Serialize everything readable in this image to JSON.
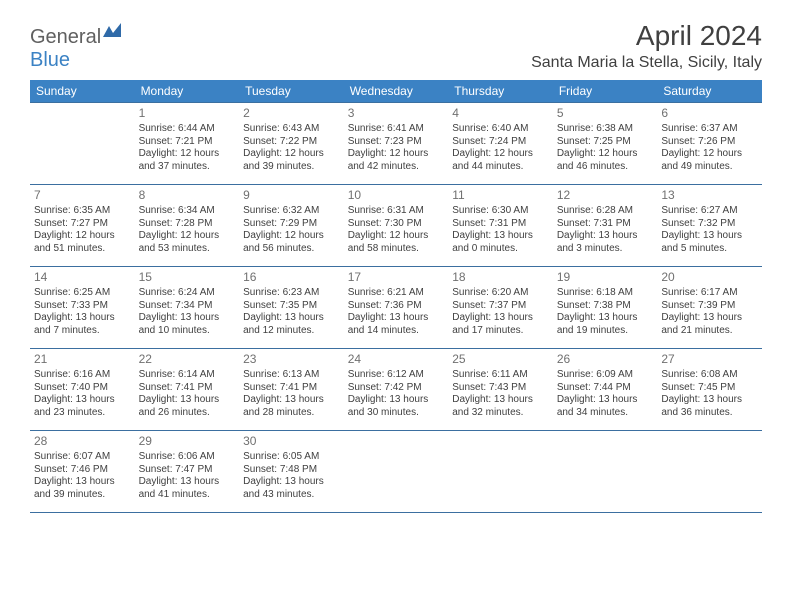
{
  "logo": {
    "text1": "General",
    "text2": "Blue"
  },
  "title": "April 2024",
  "location": "Santa Maria la Stella, Sicily, Italy",
  "colors": {
    "header_bg": "#3b82c4",
    "header_text": "#ffffff",
    "cell_border": "#3b6fa0",
    "body_text": "#404040",
    "daynum_text": "#707070",
    "logo_gray": "#606060",
    "logo_blue": "#3b82c4",
    "page_bg": "#ffffff"
  },
  "typography": {
    "title_fontsize": 28,
    "location_fontsize": 16,
    "dayheader_fontsize": 12,
    "daynum_fontsize": 12,
    "cell_fontsize": 10,
    "font_family": "Arial"
  },
  "layout": {
    "columns": 7,
    "rows": 5,
    "col_width_pct": 14.28
  },
  "day_headers": [
    "Sunday",
    "Monday",
    "Tuesday",
    "Wednesday",
    "Thursday",
    "Friday",
    "Saturday"
  ],
  "weeks": [
    [
      null,
      {
        "n": "1",
        "sunrise": "Sunrise: 6:44 AM",
        "sunset": "Sunset: 7:21 PM",
        "daylight": "Daylight: 12 hours and 37 minutes."
      },
      {
        "n": "2",
        "sunrise": "Sunrise: 6:43 AM",
        "sunset": "Sunset: 7:22 PM",
        "daylight": "Daylight: 12 hours and 39 minutes."
      },
      {
        "n": "3",
        "sunrise": "Sunrise: 6:41 AM",
        "sunset": "Sunset: 7:23 PM",
        "daylight": "Daylight: 12 hours and 42 minutes."
      },
      {
        "n": "4",
        "sunrise": "Sunrise: 6:40 AM",
        "sunset": "Sunset: 7:24 PM",
        "daylight": "Daylight: 12 hours and 44 minutes."
      },
      {
        "n": "5",
        "sunrise": "Sunrise: 6:38 AM",
        "sunset": "Sunset: 7:25 PM",
        "daylight": "Daylight: 12 hours and 46 minutes."
      },
      {
        "n": "6",
        "sunrise": "Sunrise: 6:37 AM",
        "sunset": "Sunset: 7:26 PM",
        "daylight": "Daylight: 12 hours and 49 minutes."
      }
    ],
    [
      {
        "n": "7",
        "sunrise": "Sunrise: 6:35 AM",
        "sunset": "Sunset: 7:27 PM",
        "daylight": "Daylight: 12 hours and 51 minutes."
      },
      {
        "n": "8",
        "sunrise": "Sunrise: 6:34 AM",
        "sunset": "Sunset: 7:28 PM",
        "daylight": "Daylight: 12 hours and 53 minutes."
      },
      {
        "n": "9",
        "sunrise": "Sunrise: 6:32 AM",
        "sunset": "Sunset: 7:29 PM",
        "daylight": "Daylight: 12 hours and 56 minutes."
      },
      {
        "n": "10",
        "sunrise": "Sunrise: 6:31 AM",
        "sunset": "Sunset: 7:30 PM",
        "daylight": "Daylight: 12 hours and 58 minutes."
      },
      {
        "n": "11",
        "sunrise": "Sunrise: 6:30 AM",
        "sunset": "Sunset: 7:31 PM",
        "daylight": "Daylight: 13 hours and 0 minutes."
      },
      {
        "n": "12",
        "sunrise": "Sunrise: 6:28 AM",
        "sunset": "Sunset: 7:31 PM",
        "daylight": "Daylight: 13 hours and 3 minutes."
      },
      {
        "n": "13",
        "sunrise": "Sunrise: 6:27 AM",
        "sunset": "Sunset: 7:32 PM",
        "daylight": "Daylight: 13 hours and 5 minutes."
      }
    ],
    [
      {
        "n": "14",
        "sunrise": "Sunrise: 6:25 AM",
        "sunset": "Sunset: 7:33 PM",
        "daylight": "Daylight: 13 hours and 7 minutes."
      },
      {
        "n": "15",
        "sunrise": "Sunrise: 6:24 AM",
        "sunset": "Sunset: 7:34 PM",
        "daylight": "Daylight: 13 hours and 10 minutes."
      },
      {
        "n": "16",
        "sunrise": "Sunrise: 6:23 AM",
        "sunset": "Sunset: 7:35 PM",
        "daylight": "Daylight: 13 hours and 12 minutes."
      },
      {
        "n": "17",
        "sunrise": "Sunrise: 6:21 AM",
        "sunset": "Sunset: 7:36 PM",
        "daylight": "Daylight: 13 hours and 14 minutes."
      },
      {
        "n": "18",
        "sunrise": "Sunrise: 6:20 AM",
        "sunset": "Sunset: 7:37 PM",
        "daylight": "Daylight: 13 hours and 17 minutes."
      },
      {
        "n": "19",
        "sunrise": "Sunrise: 6:18 AM",
        "sunset": "Sunset: 7:38 PM",
        "daylight": "Daylight: 13 hours and 19 minutes."
      },
      {
        "n": "20",
        "sunrise": "Sunrise: 6:17 AM",
        "sunset": "Sunset: 7:39 PM",
        "daylight": "Daylight: 13 hours and 21 minutes."
      }
    ],
    [
      {
        "n": "21",
        "sunrise": "Sunrise: 6:16 AM",
        "sunset": "Sunset: 7:40 PM",
        "daylight": "Daylight: 13 hours and 23 minutes."
      },
      {
        "n": "22",
        "sunrise": "Sunrise: 6:14 AM",
        "sunset": "Sunset: 7:41 PM",
        "daylight": "Daylight: 13 hours and 26 minutes."
      },
      {
        "n": "23",
        "sunrise": "Sunrise: 6:13 AM",
        "sunset": "Sunset: 7:41 PM",
        "daylight": "Daylight: 13 hours and 28 minutes."
      },
      {
        "n": "24",
        "sunrise": "Sunrise: 6:12 AM",
        "sunset": "Sunset: 7:42 PM",
        "daylight": "Daylight: 13 hours and 30 minutes."
      },
      {
        "n": "25",
        "sunrise": "Sunrise: 6:11 AM",
        "sunset": "Sunset: 7:43 PM",
        "daylight": "Daylight: 13 hours and 32 minutes."
      },
      {
        "n": "26",
        "sunrise": "Sunrise: 6:09 AM",
        "sunset": "Sunset: 7:44 PM",
        "daylight": "Daylight: 13 hours and 34 minutes."
      },
      {
        "n": "27",
        "sunrise": "Sunrise: 6:08 AM",
        "sunset": "Sunset: 7:45 PM",
        "daylight": "Daylight: 13 hours and 36 minutes."
      }
    ],
    [
      {
        "n": "28",
        "sunrise": "Sunrise: 6:07 AM",
        "sunset": "Sunset: 7:46 PM",
        "daylight": "Daylight: 13 hours and 39 minutes."
      },
      {
        "n": "29",
        "sunrise": "Sunrise: 6:06 AM",
        "sunset": "Sunset: 7:47 PM",
        "daylight": "Daylight: 13 hours and 41 minutes."
      },
      {
        "n": "30",
        "sunrise": "Sunrise: 6:05 AM",
        "sunset": "Sunset: 7:48 PM",
        "daylight": "Daylight: 13 hours and 43 minutes."
      },
      null,
      null,
      null,
      null
    ]
  ]
}
